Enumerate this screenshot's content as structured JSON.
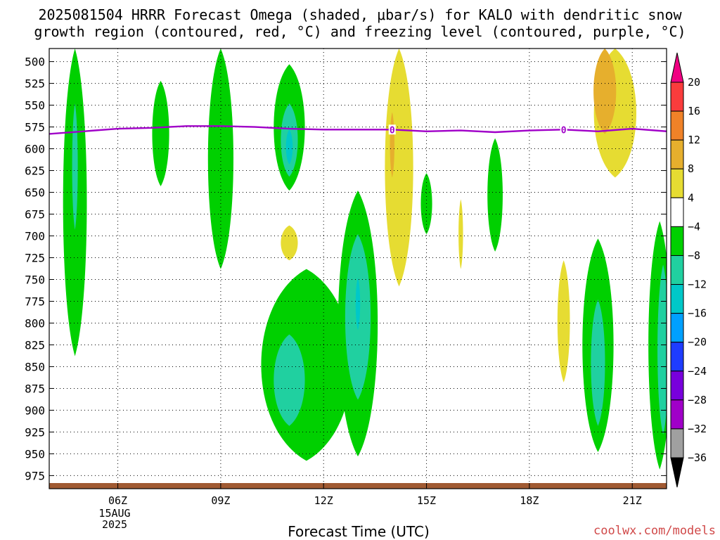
{
  "title_line1": "2025081504 HRRR Forecast Omega (shaded, μbar/s) for KALO with dendritic snow",
  "title_line2": "growth region (contoured, red, °C) and freezing level (contoured, purple, °C)",
  "x_axis_title": "Forecast Time (UTC)",
  "credit": "coolwx.com/models",
  "date_label": {
    "day": "15AUG",
    "year": "2025"
  },
  "chart_data": {
    "type": "heatmap",
    "title": "2025081504 HRRR Forecast Omega (shaded, μbar/s) for KALO with dendritic snow growth region (contoured, red, °C) and freezing level (contoured, purple, °C)",
    "xlabel": "Forecast Time (UTC)",
    "ylabel": "",
    "x_tick_labels": [
      "06Z",
      "09Z",
      "12Z",
      "15Z",
      "18Z",
      "21Z"
    ],
    "x_tick_hours": [
      6,
      9,
      12,
      15,
      18,
      21
    ],
    "xlim_hours": [
      4,
      22
    ],
    "y_tick_labels": [
      "500",
      "525",
      "550",
      "575",
      "600",
      "625",
      "650",
      "675",
      "700",
      "725",
      "750",
      "775",
      "800",
      "825",
      "850",
      "875",
      "900",
      "925",
      "950",
      "975"
    ],
    "y_values_hpa": [
      500,
      525,
      550,
      575,
      600,
      625,
      650,
      675,
      700,
      725,
      750,
      775,
      800,
      825,
      850,
      875,
      900,
      925,
      950,
      975
    ],
    "ylim_hpa": [
      485,
      990
    ],
    "grid": true,
    "colorbar": {
      "levels": [
        -36,
        -32,
        -28,
        -24,
        -20,
        -16,
        -12,
        -8,
        -4,
        4,
        8,
        12,
        16,
        20
      ],
      "labels": [
        "20",
        "16",
        "12",
        "8",
        "4",
        "−4",
        "−8",
        "−12",
        "−16",
        "−20",
        "−24",
        "−28",
        "−32",
        "−36"
      ],
      "colors": {
        "below_-36": "#000000",
        "-36_-32": "#a0a0a0",
        "-32_-28": "#a000c8",
        "-28_-24": "#7800dc",
        "-24_-20": "#1e3cff",
        "-20_-16": "#00a0ff",
        "-16_-12": "#00c8c8",
        "-12_-8": "#20d0a0",
        "-8_-4": "#00d000",
        "-4_4": "#ffffff",
        "4_8": "#e6dc32",
        "8_12": "#e6af2d",
        "12_16": "#f08228",
        "16_20": "#fa3c3c",
        "above_20": "#f00082"
      }
    },
    "regions": [
      {
        "name": "ascent-0445",
        "shading": "-8_-4",
        "hour": 4.75,
        "p_top": 485,
        "p_bottom": 838
      },
      {
        "name": "ascent-0445-core",
        "shading": "-12_-8",
        "hour": 4.75,
        "p_top": 548,
        "p_bottom": 693
      },
      {
        "name": "ascent-0715",
        "shading": "-8_-4",
        "hour": 7.25,
        "p_top": 522,
        "p_bottom": 643
      },
      {
        "name": "ascent-0900",
        "shading": "-8_-4",
        "hour": 9.0,
        "p_top": 485,
        "p_bottom": 738
      },
      {
        "name": "ascent-1100",
        "shading": "-8_-4",
        "hour": 11.0,
        "p_top": 503,
        "p_bottom": 648
      },
      {
        "name": "ascent-1100-core1",
        "shading": "-12_-8",
        "hour": 11.0,
        "p_top": 548,
        "p_bottom": 632
      },
      {
        "name": "ascent-1100-core2",
        "shading": "-16_-12",
        "hour": 11.0,
        "p_top": 578,
        "p_bottom": 618
      },
      {
        "name": "ascent-1030-low",
        "shading": "-8_-4",
        "hour": 11.5,
        "p_top": 738,
        "p_bottom": 958
      },
      {
        "name": "ascent-1030-low-core",
        "shading": "-12_-8",
        "hour": 11.0,
        "p_top": 813,
        "p_bottom": 918
      },
      {
        "name": "ascent-1300",
        "shading": "-8_-4",
        "hour": 13.0,
        "p_top": 648,
        "p_bottom": 953
      },
      {
        "name": "ascent-1300-core1",
        "shading": "-12_-8",
        "hour": 13.0,
        "p_top": 698,
        "p_bottom": 888
      },
      {
        "name": "ascent-1300-core2",
        "shading": "-16_-12",
        "hour": 13.0,
        "p_top": 748,
        "p_bottom": 808
      },
      {
        "name": "descent-1400",
        "shading": "4_8",
        "hour": 14.2,
        "p_top": 485,
        "p_bottom": 758
      },
      {
        "name": "descent-1400-core",
        "shading": "8_12",
        "hour": 14.0,
        "p_top": 558,
        "p_bottom": 633
      },
      {
        "name": "descent-1100-small",
        "shading": "4_8",
        "hour": 11.0,
        "p_top": 688,
        "p_bottom": 728
      },
      {
        "name": "ascent-1500",
        "shading": "-8_-4",
        "hour": 15.0,
        "p_top": 628,
        "p_bottom": 698
      },
      {
        "name": "descent-1600",
        "shading": "4_8",
        "hour": 16.0,
        "p_top": 658,
        "p_bottom": 738
      },
      {
        "name": "ascent-1700",
        "shading": "-8_-4",
        "hour": 17.0,
        "p_top": 588,
        "p_bottom": 718
      },
      {
        "name": "descent-1900",
        "shading": "4_8",
        "hour": 19.0,
        "p_top": 728,
        "p_bottom": 868
      },
      {
        "name": "descent-2000",
        "shading": "4_8",
        "hour": 20.5,
        "p_top": 485,
        "p_bottom": 633
      },
      {
        "name": "descent-2000-core",
        "shading": "8_12",
        "hour": 20.2,
        "p_top": 485,
        "p_bottom": 583
      },
      {
        "name": "ascent-2000-low",
        "shading": "-8_-4",
        "hour": 20.0,
        "p_top": 703,
        "p_bottom": 948
      },
      {
        "name": "ascent-2000-low-core",
        "shading": "-12_-8",
        "hour": 20.0,
        "p_top": 773,
        "p_bottom": 918
      },
      {
        "name": "ascent-2130-low",
        "shading": "-8_-4",
        "hour": 21.8,
        "p_top": 683,
        "p_bottom": 968
      },
      {
        "name": "ascent-2130-low-core",
        "shading": "-12_-8",
        "hour": 21.9,
        "p_top": 733,
        "p_bottom": 928
      }
    ],
    "freezing_level": {
      "label": "0",
      "color": "#a000c8",
      "hours": [
        4,
        5,
        6,
        7,
        8,
        9,
        10,
        11,
        12,
        13,
        14,
        15,
        16,
        17,
        18,
        19,
        20,
        21,
        22
      ],
      "pressure_hpa": [
        583,
        580,
        577,
        576,
        574,
        574,
        575,
        577,
        578,
        578,
        578,
        580,
        579,
        581,
        579,
        578,
        580,
        577,
        580
      ],
      "label_hours": [
        14,
        19
      ]
    },
    "surface_color": "#a05a32"
  }
}
